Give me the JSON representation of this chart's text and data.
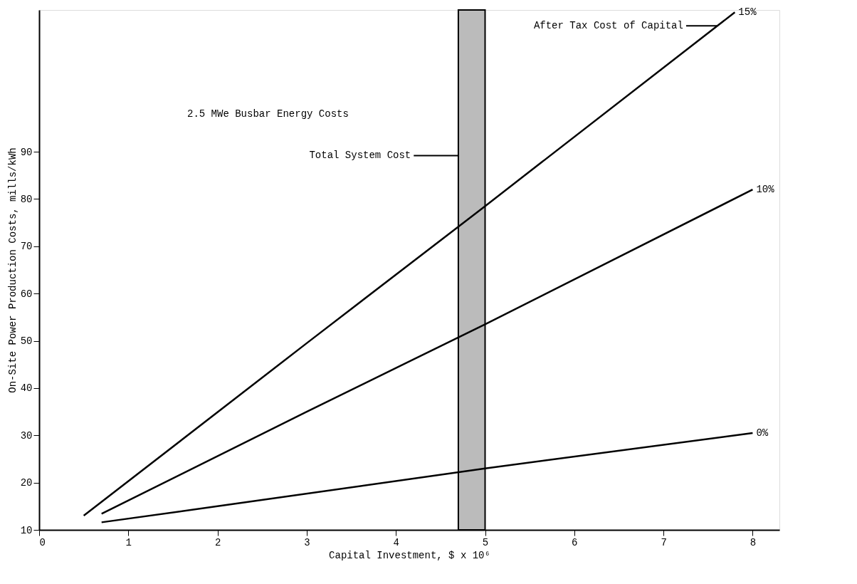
{
  "chart_data": {
    "type": "line",
    "title": "2.5 MWe Busbar Energy Costs",
    "xlabel": "Capital Investment, $ x 10⁶",
    "ylabel": "On-Site Power Production Costs, mills/kWh",
    "legend_title": "After Tax Cost of Capital",
    "series": [
      {
        "name": "15%",
        "color": "#000000",
        "x": [
          0.5,
          3,
          5,
          7.8
        ],
        "values": [
          13,
          49.5,
          78.5,
          119.5
        ]
      },
      {
        "name": "10%",
        "color": "#000000",
        "x": [
          0.7,
          3,
          5,
          8
        ],
        "values": [
          13.4,
          35,
          53.5,
          82
        ]
      },
      {
        "name": "0%",
        "color": "#000000",
        "x": [
          0.7,
          2,
          5,
          8
        ],
        "values": [
          11.6,
          15,
          23,
          30.5
        ]
      }
    ],
    "bands": [
      {
        "axis": "x",
        "from": 4.7,
        "to": 5,
        "label": "Total System Cost",
        "color": "#bbbbbb"
      }
    ],
    "xlim": [
      0,
      8.3
    ],
    "xticks": [
      0,
      1,
      2,
      3,
      4,
      5,
      6,
      7,
      8
    ],
    "ylim": [
      10,
      120
    ],
    "yticks": [
      10,
      20,
      30,
      40,
      50,
      60,
      70,
      80,
      90
    ],
    "grid": false,
    "marker": "none",
    "line_style": "solid"
  }
}
